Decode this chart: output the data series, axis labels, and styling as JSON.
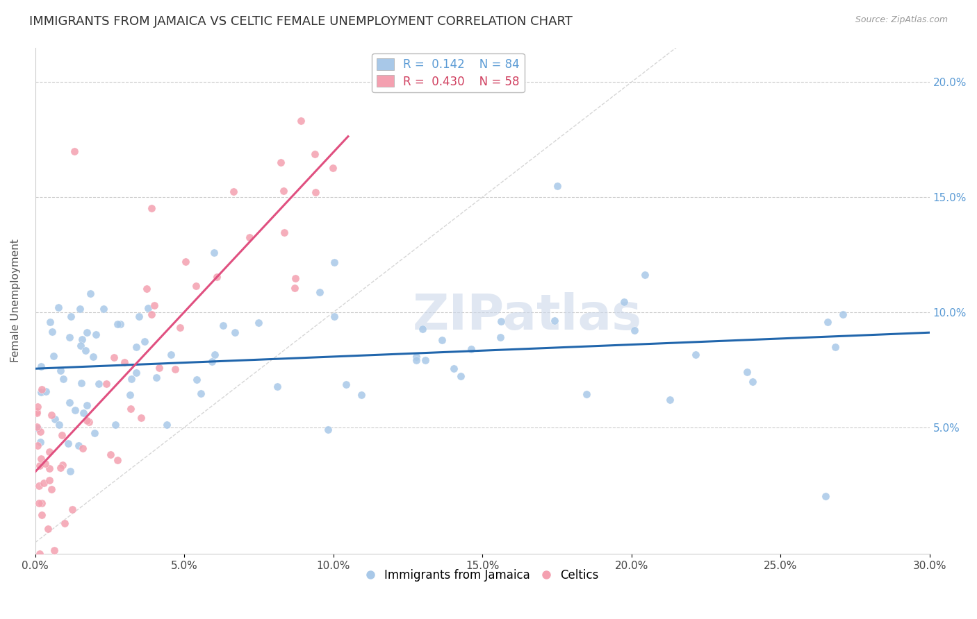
{
  "title": "IMMIGRANTS FROM JAMAICA VS CELTIC FEMALE UNEMPLOYMENT CORRELATION CHART",
  "source": "Source: ZipAtlas.com",
  "ylabel": "Female Unemployment",
  "watermark": "ZIPatlas",
  "jamaica_color": "#a8c8e8",
  "celtics_color": "#f4a0b0",
  "jamaica_line_color": "#2166ac",
  "celtics_line_color": "#e05080",
  "diagonal_line_color": "#cccccc",
  "ytick_color": "#5b9bd5",
  "background_color": "#ffffff",
  "xlim": [
    0.0,
    0.3
  ],
  "ylim": [
    -0.005,
    0.215
  ],
  "R_jamaica": 0.142,
  "N_jamaica": 84,
  "R_celtics": 0.43,
  "N_celtics": 58,
  "title_fontsize": 13,
  "axis_label_fontsize": 11,
  "tick_fontsize": 11,
  "legend_fontsize": 12
}
